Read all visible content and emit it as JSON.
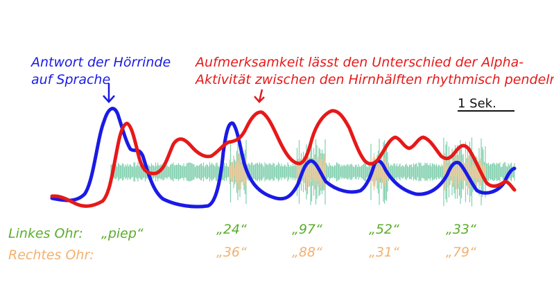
{
  "annotations": {
    "blue_line1": "Antwort der Hörrinde",
    "blue_line2": "auf  Sprache",
    "red_line1": "Aufmerksamkeit lässt den Unterschied der Alpha-",
    "red_line2": "Aktivität zwischen den Hirnhälften rhythmisch pendeln"
  },
  "scale_bar": {
    "label": "1 Sek."
  },
  "rows": {
    "left_label": "Linkes Ohr:",
    "right_label": "Rechtes Ohr:",
    "left_items": [
      "„piep“",
      "„24“",
      "„97“",
      "„52“",
      "„33“"
    ],
    "right_items": [
      "„36“",
      "„88“",
      "„31“",
      "„79“"
    ]
  },
  "colors": {
    "blue": "#1a1ae6",
    "red": "#e61919",
    "green": "#5aad2a",
    "orange": "#f3b06e",
    "waveform_green": "#6cc7a0",
    "waveform_orange": "#f3c08a"
  }
}
